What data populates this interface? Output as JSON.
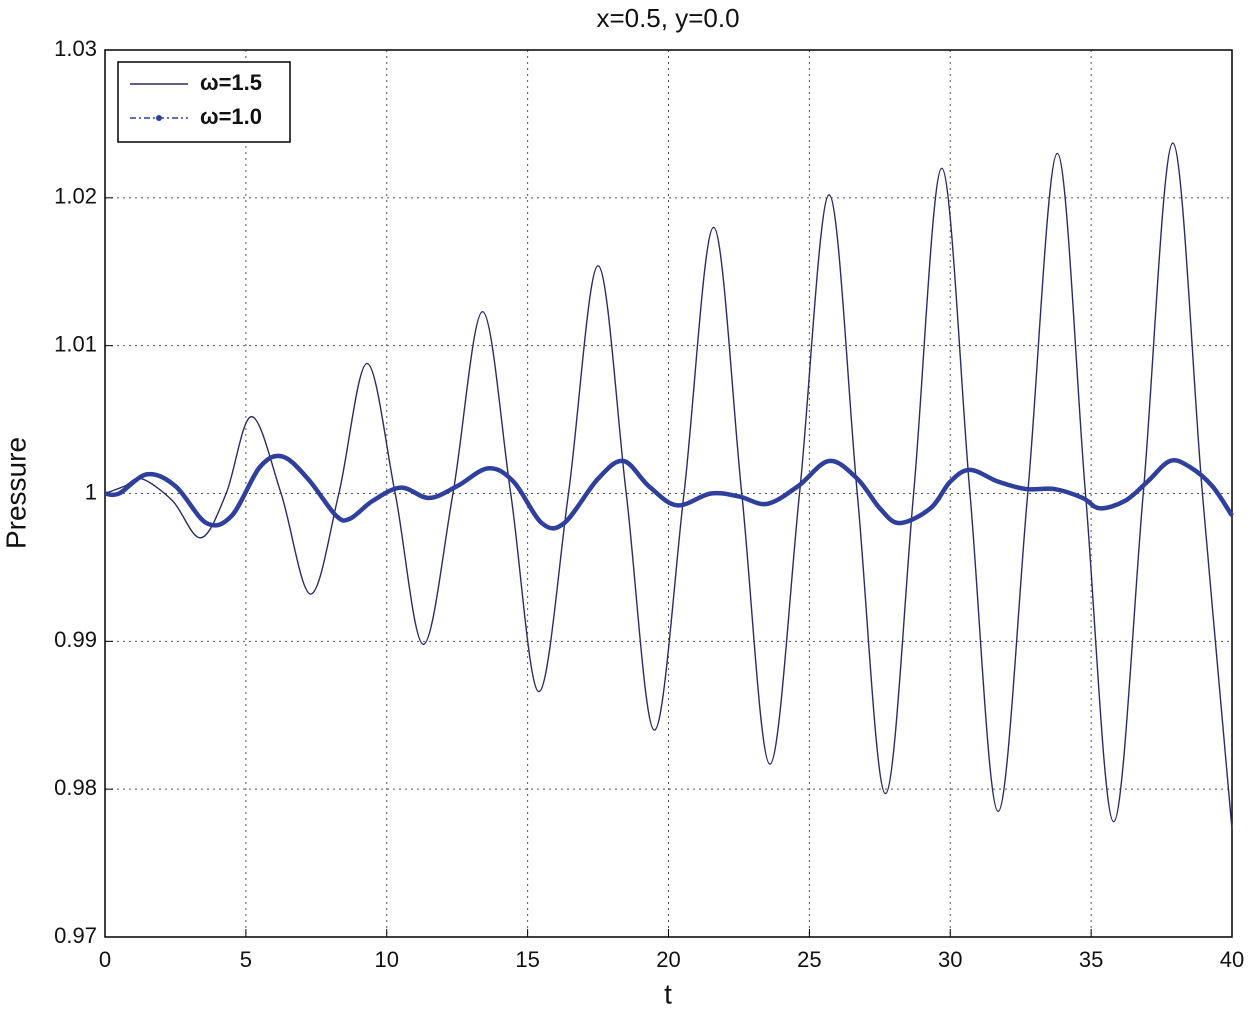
{
  "chart_data": {
    "type": "line",
    "title": "x=0.5, y=0.0",
    "xlabel": "t",
    "ylabel": "Pressure",
    "xlim": [
      0,
      40
    ],
    "xticks": [
      0,
      5,
      10,
      15,
      20,
      25,
      30,
      35,
      40
    ],
    "ylim": [
      0.97,
      1.03
    ],
    "yticks": [
      0.97,
      0.98,
      0.99,
      1,
      1.01,
      1.02,
      1.03
    ],
    "grid": true,
    "legend": "upper left",
    "series": [
      {
        "name": "ω=1.5",
        "color": "#2b2b66",
        "x": [
          0,
          0.7,
          1.3,
          2.4,
          3.4,
          4.3,
          5.2,
          6.25,
          7.3,
          8.3,
          9.3,
          10.3,
          11.3,
          12.35,
          13.4,
          14.4,
          15.4,
          16.45,
          17.5,
          18.5,
          19.5,
          20.55,
          21.6,
          22.6,
          23.6,
          24.65,
          25.7,
          26.7,
          27.7,
          28.7,
          29.7,
          30.7,
          31.7,
          32.75,
          33.8,
          34.8,
          35.8,
          36.85,
          37.9,
          38.95,
          40
        ],
        "values": [
          1.0,
          1.0005,
          1.001,
          0.9995,
          0.997,
          1.0,
          1.0052,
          1.0,
          0.9932,
          1.0,
          1.0088,
          1.0,
          0.9898,
          1.0,
          1.0123,
          1.0,
          0.9866,
          1.0,
          1.0154,
          1.0,
          0.984,
          1.0,
          1.018,
          1.0,
          0.9817,
          1.0,
          1.0202,
          1.0,
          0.9797,
          1.0,
          1.022,
          1.0,
          0.9785,
          1.0,
          1.023,
          1.0,
          0.9778,
          1.0,
          1.0237,
          1.0,
          0.9773
        ]
      },
      {
        "name": "ω=1.0",
        "color": "#2e3f9e",
        "x": [
          0,
          0.5,
          1.5,
          2.5,
          3.6,
          4.5,
          5.5,
          6.3,
          7.2,
          8.2,
          8.7,
          9.5,
          10.5,
          11.5,
          12.5,
          13.6,
          14.5,
          15.5,
          16.3,
          17.5,
          18.4,
          19.3,
          20.3,
          21.5,
          22.5,
          23.5,
          24.6,
          25.7,
          26.7,
          27.5,
          28.2,
          29.3,
          30.0,
          30.7,
          31.7,
          32.7,
          33.7,
          34.7,
          35.3,
          36.2,
          37.0,
          37.8,
          38.5,
          39.3,
          40
        ],
        "values": [
          1.0,
          1.0,
          1.0013,
          1.0005,
          0.998,
          0.9985,
          1.0018,
          1.0025,
          1.001,
          0.9985,
          0.9983,
          0.9995,
          1.0004,
          0.9997,
          1.0005,
          1.0017,
          1.0008,
          0.998,
          0.998,
          1.001,
          1.0022,
          1.0005,
          0.9992,
          1.0,
          0.9998,
          0.9993,
          1.0005,
          1.0022,
          1.001,
          0.999,
          0.998,
          0.999,
          1.0008,
          1.0016,
          1.0008,
          1.0003,
          1.0003,
          0.9997,
          0.999,
          0.9995,
          1.0008,
          1.0022,
          1.0018,
          1.0005,
          0.9985
        ]
      }
    ]
  }
}
